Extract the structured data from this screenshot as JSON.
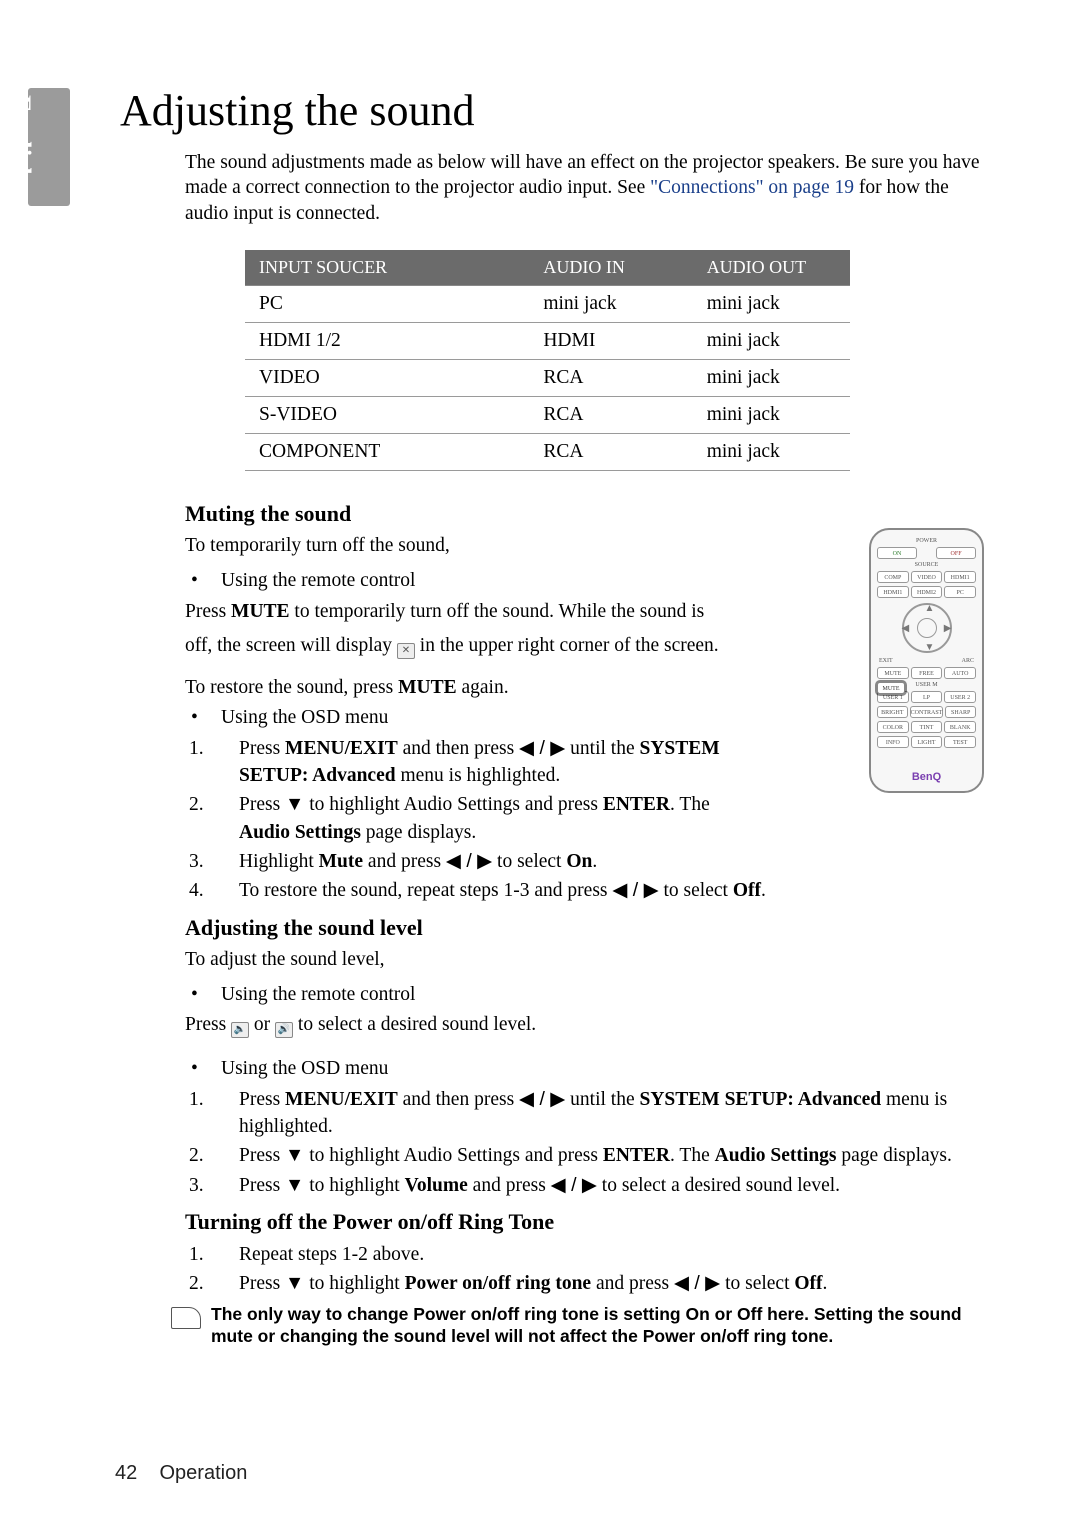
{
  "side_tab": "English",
  "title": "Adjusting the sound",
  "intro": {
    "pre": "The sound adjustments made as below will have an effect on the projector speakers. Be sure you have made a correct connection to the projector audio input. See ",
    "link": "\"Connections\" on page 19",
    "post": " for how the audio input is connected."
  },
  "table": {
    "headers": [
      "INPUT SOUCER",
      "AUDIO IN",
      "AUDIO OUT"
    ],
    "rows": [
      [
        "PC",
        "mini jack",
        "mini jack"
      ],
      [
        "HDMI 1/2",
        "HDMI",
        "mini jack"
      ],
      [
        "VIDEO",
        "RCA",
        "mini jack"
      ],
      [
        "S-VIDEO",
        "RCA",
        "mini jack"
      ],
      [
        "COMPONENT",
        "RCA",
        "mini jack"
      ]
    ]
  },
  "muting": {
    "heading": "Muting the sound",
    "intro": "To temporarily turn off the sound,",
    "bullet1": "Using the remote control",
    "p1a": "Press ",
    "p1b": "MUTE",
    "p1c": " to temporarily turn off the sound. While the sound is",
    "p2a": "off, the screen will display",
    "p2b": "in the upper right corner of the screen.",
    "p3a": "To restore the sound, press ",
    "p3b": "MUTE",
    "p3c": " again.",
    "bullet2": "Using the OSD menu",
    "steps": [
      {
        "pre": "Press ",
        "b1": "MENU/EXIT",
        "mid1": " and then press ",
        "arrows": "◀ / ▶",
        "mid2": " until the ",
        "b2": "SYSTEM SETUP: Advanced",
        "post": " menu is highlighted."
      },
      {
        "pre": "Press ",
        "arrow": "▼",
        "mid": " to highlight Audio Settings and press ",
        "b1": "ENTER",
        "post": ". The ",
        "b2": "Audio Settings",
        "post2": " page displays."
      },
      {
        "pre": "Highlight ",
        "b1": "Mute",
        "mid": " and press ",
        "arrows": "◀ / ▶",
        "mid2": " to select ",
        "b2": "On",
        "post": "."
      },
      {
        "pre": "To restore the sound, repeat steps 1-3 and press ",
        "arrows": "◀ / ▶",
        "mid": " to select ",
        "b1": "Off",
        "post": "."
      }
    ]
  },
  "level": {
    "heading": "Adjusting the sound level",
    "intro": "To adjust the sound level,",
    "bullet1": "Using the remote control",
    "p1a": "Press",
    "p1b": "or",
    "p1c": "to select a desired sound level.",
    "bullet2": "Using the OSD menu",
    "steps": [
      {
        "pre": "Press ",
        "b1": "MENU/EXIT",
        "mid1": " and then press ",
        "arrows": "◀ / ▶",
        "mid2": " until the ",
        "b2": "SYSTEM SETUP: Advanced",
        "post": " menu is highlighted."
      },
      {
        "pre": "Press ",
        "arrow": "▼",
        "mid": " to highlight Audio Settings and press ",
        "b1": "ENTER",
        "post": ". The ",
        "b2": "Audio Settings",
        "post2": " page displays."
      },
      {
        "pre": "Press ",
        "arrow": "▼",
        "mid": " to highlight ",
        "b1": "Volume",
        "mid2": " and press ",
        "arrows": "◀ / ▶",
        "post": " to select a desired sound level."
      }
    ]
  },
  "ringtone": {
    "heading": "Turning off the Power on/off Ring Tone",
    "steps": [
      {
        "txt": "Repeat steps 1-2 above."
      },
      {
        "pre": "Press ",
        "arrow": "▼",
        "mid": " to highlight ",
        "b1": "Power on/off ring tone",
        "mid2": " and press ",
        "arrows": "◀ / ▶",
        "mid3": " to select ",
        "b2": "Off",
        "post": "."
      }
    ]
  },
  "note": "The only way to change Power on/off ring tone is setting On or Off here. Setting the sound mute or changing the sound level will not affect the Power on/off ring tone.",
  "remote": {
    "row1": [
      "ON",
      "",
      "OFF"
    ],
    "label1": "POWER",
    "label2": "SOURCE",
    "row2": [
      "COMP",
      "VIDEO",
      "HDMI1"
    ],
    "row3": [
      "HDMI1",
      "HDMI2",
      "PC"
    ],
    "exit": "EXIT",
    "arc": "ARC",
    "mute": "MUTE",
    "row5": [
      "MUTE",
      "FREE",
      "AUTO"
    ],
    "labelum": "USER M",
    "row6": [
      "USER 1",
      "LP",
      "USER 2"
    ],
    "row7": [
      "BRIGHT",
      "CONTRAST",
      "SHARP"
    ],
    "row8": [
      "COLOR",
      "TINT",
      "BLANK"
    ],
    "row9": [
      "INFO",
      "LIGHT",
      "TEST"
    ],
    "logo": "BenQ"
  },
  "footer": {
    "page": "42",
    "section": "Operation"
  }
}
